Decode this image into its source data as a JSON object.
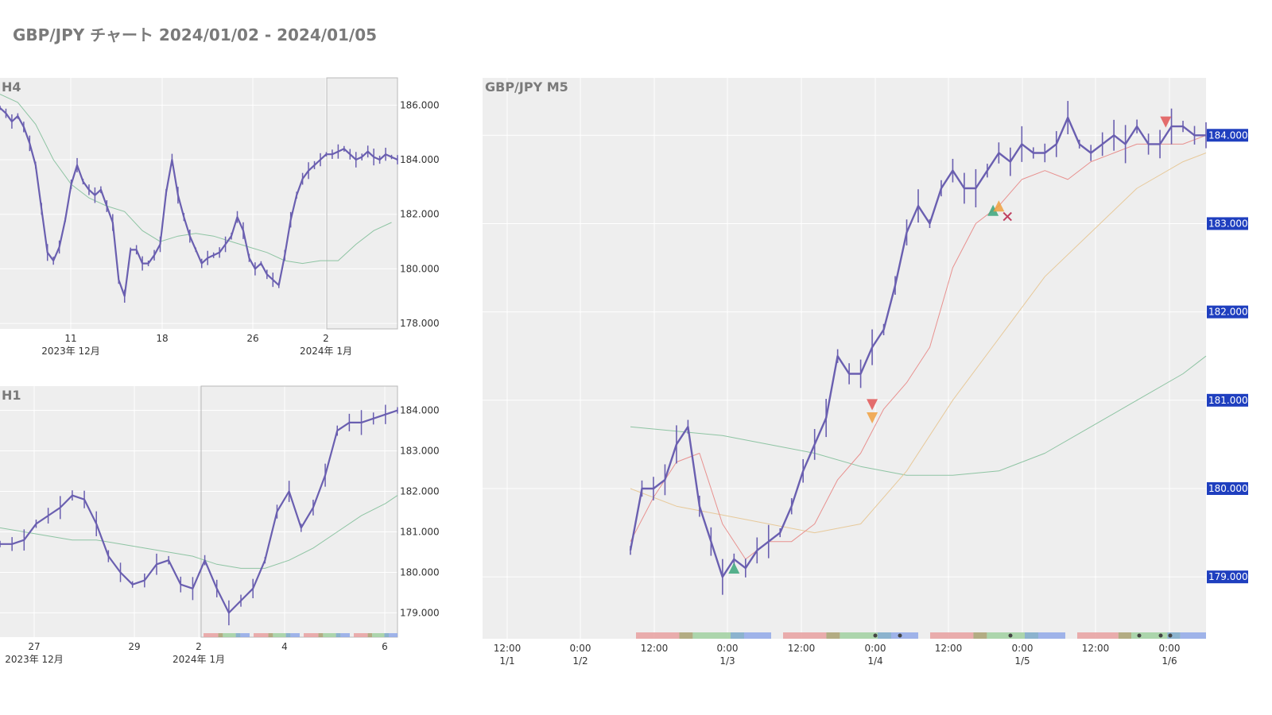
{
  "title": "GBP/JPY チャート 2024/01/02 - 2024/01/05",
  "colors": {
    "candle": "#6a5fb0",
    "plot_bg": "#eeeeee",
    "grid": "#ffffff",
    "ma_short": "#e8918f",
    "ma_mid": "#e7c99a",
    "ma_long": "#8ec4a3",
    "price_tag": "#1f3fbf",
    "title_text": "#7a7a7a",
    "axis_text": "#333333",
    "sell_marker": "#e05555",
    "buy_marker": "#3aa57a",
    "entry_marker": "#f0a040",
    "exit_marker": "#c04060",
    "session_tokyo": "#e8a0a0",
    "session_overlap": "#a8a070",
    "session_london": "#a0d0a0",
    "session_ny": "#90a8e8",
    "session_mid": "#7aa8c8"
  },
  "chart_data": [
    {
      "id": "h4",
      "type": "line",
      "title": "H4",
      "x_tick_labels": [
        "11",
        "18",
        "26",
        "2"
      ],
      "x_group_labels": [
        "2023年 12月",
        "2024年 1月"
      ],
      "y_tick_labels": [
        "186.000",
        "184.000",
        "182.000",
        "180.000",
        "178.000"
      ],
      "ylim": [
        177.8,
        187.0
      ],
      "grid": true,
      "highlight_label": "2024/01/02 - 2024/01/05",
      "series": [
        {
          "name": "",
          "x": [
            0,
            2,
            4,
            6,
            8,
            10,
            12,
            14,
            16,
            18,
            20,
            22,
            24,
            26,
            28,
            30,
            32,
            34,
            36,
            38,
            40,
            42,
            44,
            46,
            48,
            50,
            52,
            54,
            56,
            58,
            60,
            62,
            64,
            66,
            68,
            70,
            72,
            74,
            76,
            78,
            80,
            82,
            84,
            86,
            88,
            90,
            92,
            94,
            96,
            98,
            100,
            102,
            104,
            106,
            108,
            110,
            112,
            114,
            116,
            118,
            120,
            122,
            124,
            126,
            128,
            130,
            132,
            134
          ],
          "values": [
            185.9,
            185.7,
            185.4,
            185.6,
            185.2,
            184.6,
            183.8,
            182.2,
            180.6,
            180.3,
            180.8,
            181.8,
            183.1,
            183.8,
            183.2,
            182.9,
            182.7,
            182.9,
            182.3,
            181.7,
            179.6,
            179.0,
            180.7,
            180.7,
            180.2,
            180.2,
            180.5,
            180.9,
            182.8,
            184.0,
            182.7,
            181.9,
            181.2,
            180.7,
            180.2,
            180.4,
            180.5,
            180.6,
            180.9,
            181.2,
            181.9,
            181.4,
            180.4,
            180.0,
            180.2,
            179.8,
            179.6,
            179.4,
            180.5,
            181.8,
            182.7,
            183.3,
            183.6,
            183.8,
            184.0,
            184.2,
            184.2,
            184.3,
            184.4,
            184.2,
            184.0,
            184.1,
            184.3,
            184.1,
            184.0,
            184.2,
            184.1,
            184.0
          ]
        },
        {
          "name": "",
          "x": [
            0,
            6,
            12,
            18,
            24,
            30,
            36,
            42,
            48,
            54,
            60,
            66,
            72,
            78,
            84,
            90,
            96,
            102,
            108,
            114,
            120,
            126,
            132
          ],
          "values": [
            186.4,
            186.1,
            185.3,
            184.0,
            183.1,
            182.6,
            182.3,
            182.1,
            181.4,
            181.0,
            181.2,
            181.3,
            181.2,
            181.0,
            180.8,
            180.6,
            180.3,
            180.2,
            180.3,
            180.3,
            180.9,
            181.4,
            181.7
          ]
        }
      ]
    },
    {
      "id": "h1",
      "type": "line",
      "title": "H1",
      "x_tick_labels": [
        "27",
        "29",
        "2",
        "4",
        "6"
      ],
      "x_group_labels": [
        "2023年 12月",
        "2024年 1月"
      ],
      "y_tick_labels": [
        "184.000",
        "183.000",
        "182.000",
        "181.000",
        "180.000",
        "179.000"
      ],
      "ylim": [
        178.4,
        184.6
      ],
      "grid": true,
      "series": [
        {
          "name": "",
          "x": [
            0,
            4,
            8,
            12,
            16,
            20,
            24,
            28,
            32,
            36,
            40,
            44,
            48,
            52,
            56,
            60,
            64,
            68,
            72,
            76,
            80,
            84,
            88,
            92,
            96,
            100,
            104,
            108,
            112,
            116,
            120,
            124,
            128,
            132
          ],
          "values": [
            180.7,
            180.7,
            180.8,
            181.2,
            181.4,
            181.6,
            181.9,
            181.8,
            181.2,
            180.4,
            180.0,
            179.7,
            179.8,
            180.2,
            180.3,
            179.7,
            179.6,
            180.3,
            179.6,
            179.0,
            179.3,
            179.6,
            180.3,
            181.5,
            182.0,
            181.1,
            181.6,
            182.4,
            183.5,
            183.7,
            183.7,
            183.8,
            183.9,
            184.0
          ]
        },
        {
          "name": "",
          "x": [
            0,
            8,
            16,
            24,
            32,
            40,
            48,
            56,
            64,
            72,
            80,
            88,
            96,
            104,
            112,
            120,
            128,
            132
          ],
          "values": [
            181.1,
            181.0,
            180.9,
            180.8,
            180.8,
            180.7,
            180.6,
            180.5,
            180.4,
            180.2,
            180.1,
            180.1,
            180.3,
            180.6,
            181.0,
            181.4,
            181.7,
            181.9
          ]
        }
      ]
    },
    {
      "id": "m5",
      "type": "line",
      "title": "GBP/JPY M5",
      "x_tick_labels": [
        "12:00\n1/1",
        "0:00\n1/2",
        "12:00",
        "0:00\n1/3",
        "12:00",
        "0:00\n1/4",
        "12:00",
        "0:00\n1/5",
        "12:00",
        "0:00\n1/6"
      ],
      "y_tick_labels": [
        "184.000",
        "183.000",
        "182.000",
        "181.000",
        "180.000",
        "179.000"
      ],
      "ylim": [
        178.3,
        184.65
      ],
      "grid": true,
      "series": [
        {
          "name": "",
          "x": [
            0,
            2,
            4,
            6,
            8,
            10,
            12,
            14,
            16,
            18,
            20,
            22,
            24,
            26,
            28,
            30,
            32,
            34,
            36,
            38,
            40,
            42,
            44,
            46,
            48,
            50,
            52,
            54,
            56,
            58,
            60,
            62,
            64,
            66,
            68,
            70,
            72,
            74,
            76,
            78,
            80,
            82,
            84,
            86,
            88,
            90,
            92,
            94,
            96,
            98,
            100
          ],
          "values": [
            179.3,
            180.0,
            180.0,
            180.1,
            180.5,
            180.7,
            179.8,
            179.4,
            179.0,
            179.2,
            179.1,
            179.3,
            179.4,
            179.5,
            179.8,
            180.2,
            180.5,
            180.8,
            181.5,
            181.3,
            181.3,
            181.6,
            181.8,
            182.3,
            182.9,
            183.2,
            183.0,
            183.4,
            183.6,
            183.4,
            183.4,
            183.6,
            183.8,
            183.7,
            183.9,
            183.8,
            183.8,
            183.9,
            184.2,
            183.9,
            183.8,
            183.9,
            184.0,
            183.9,
            184.1,
            183.9,
            183.9,
            184.1,
            184.1,
            184.0,
            184.0
          ]
        },
        {
          "name": "",
          "x": [
            0,
            4,
            8,
            12,
            16,
            20,
            24,
            28,
            32,
            36,
            40,
            44,
            48,
            52,
            56,
            60,
            64,
            68,
            72,
            76,
            80,
            84,
            88,
            92,
            96,
            100
          ],
          "values": [
            179.4,
            179.9,
            180.3,
            180.4,
            179.6,
            179.2,
            179.4,
            179.4,
            179.6,
            180.1,
            180.4,
            180.9,
            181.2,
            181.6,
            182.5,
            183.0,
            183.2,
            183.5,
            183.6,
            183.5,
            183.7,
            183.8,
            183.9,
            183.9,
            183.9,
            184.0
          ]
        },
        {
          "name": "",
          "x": [
            0,
            8,
            16,
            24,
            32,
            40,
            48,
            56,
            64,
            72,
            80,
            88,
            96,
            100
          ],
          "values": [
            180.0,
            179.8,
            179.7,
            179.6,
            179.5,
            179.6,
            180.2,
            181.0,
            181.7,
            182.4,
            182.9,
            183.4,
            183.7,
            183.8
          ]
        },
        {
          "name": "",
          "x": [
            0,
            8,
            16,
            24,
            32,
            40,
            48,
            56,
            64,
            72,
            80,
            88,
            96,
            100
          ],
          "values": [
            180.7,
            180.65,
            180.6,
            180.5,
            180.4,
            180.25,
            180.15,
            180.15,
            180.2,
            180.4,
            180.7,
            181.0,
            181.3,
            181.5
          ]
        }
      ]
    }
  ]
}
